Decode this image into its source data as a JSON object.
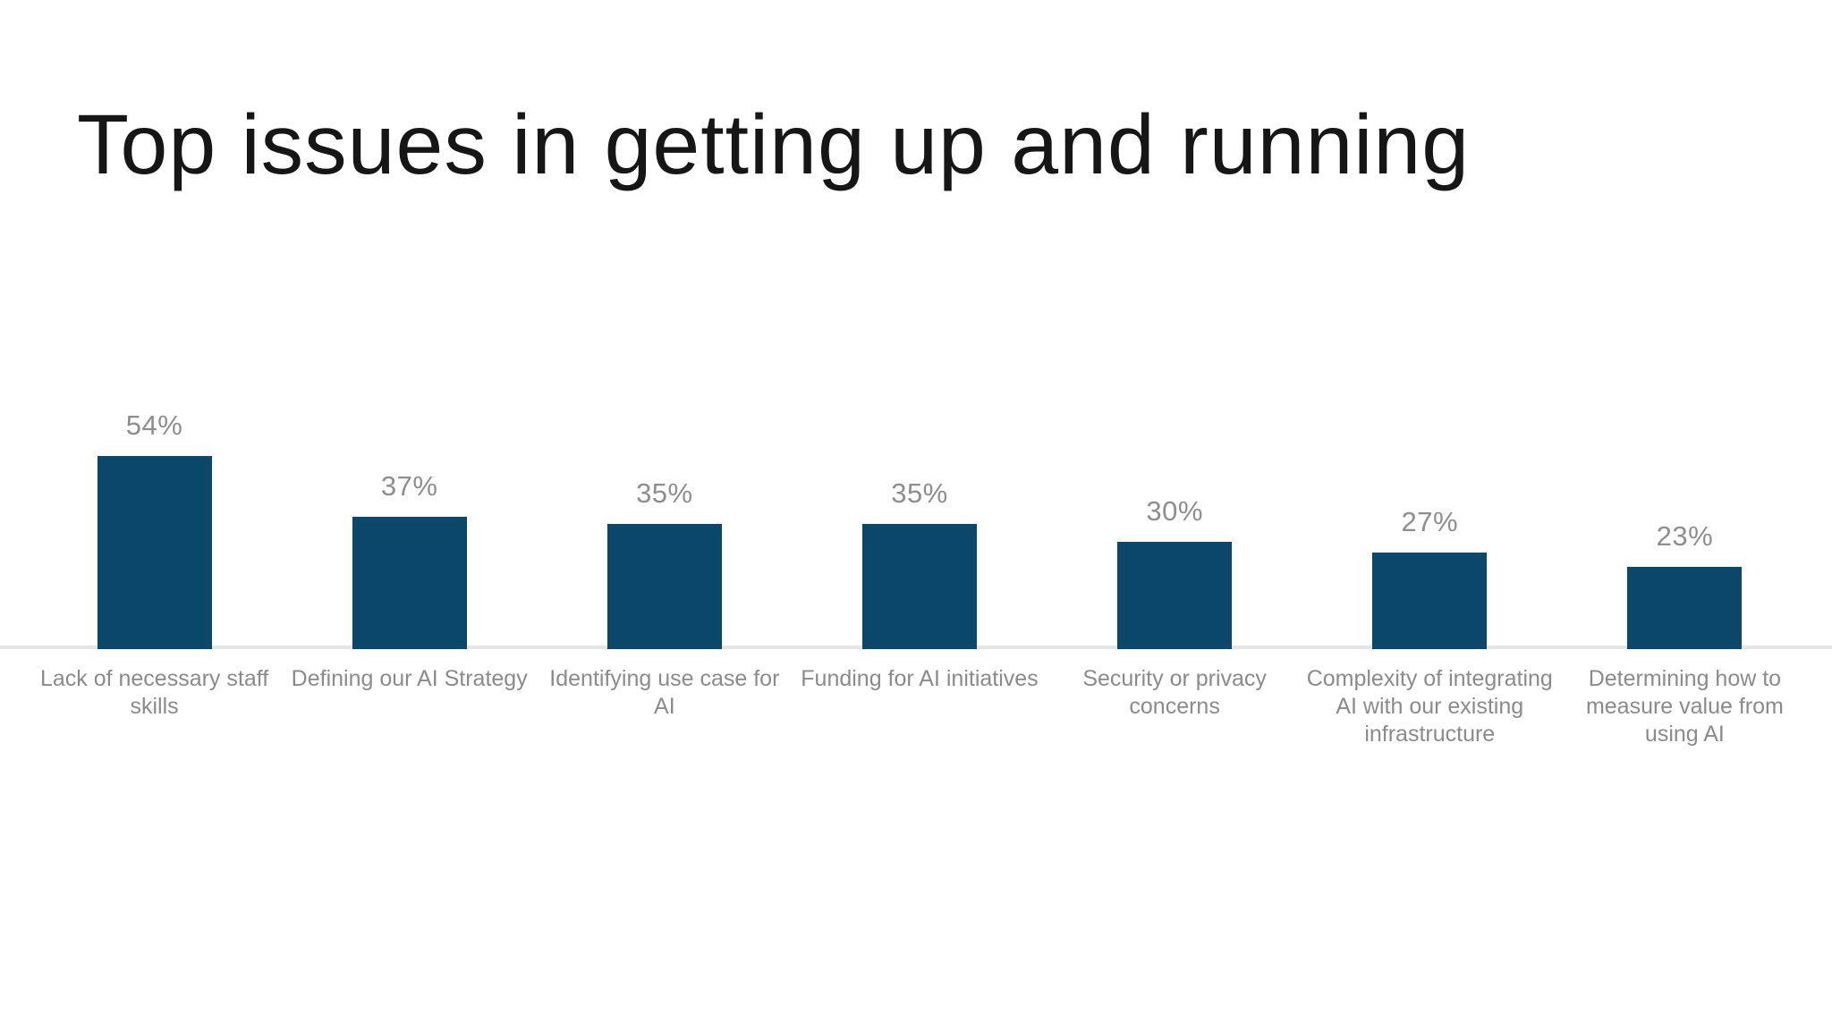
{
  "title": "Top issues in getting up and running",
  "chart_data": {
    "type": "bar",
    "title": "Top issues in getting up and running",
    "categories": [
      "Lack of necessary staff\nskills",
      "Defining our AI Strategy",
      "Identifying use case for\nAI",
      "Funding for AI initiatives",
      "Security or privacy\nconcerns",
      "Complexity of integrating\nAI with our existing\ninfrastructure",
      "Determining how to\nmeasure value from\nusing AI"
    ],
    "values": [
      54,
      37,
      35,
      35,
      30,
      27,
      23
    ],
    "value_labels": [
      "54%",
      "37%",
      "35%",
      "35%",
      "30%",
      "27%",
      "23%"
    ],
    "xlabel": "",
    "ylabel": "",
    "ylim": [
      0,
      60
    ],
    "grid": false,
    "legend": false,
    "bar_color": "#0a476b",
    "value_label_color": "#8e8e8e",
    "category_label_color": "#8b8b8b",
    "axis_line_color": "#e5e5e7",
    "background_color": "#ffffff",
    "title_color": "#161616"
  }
}
